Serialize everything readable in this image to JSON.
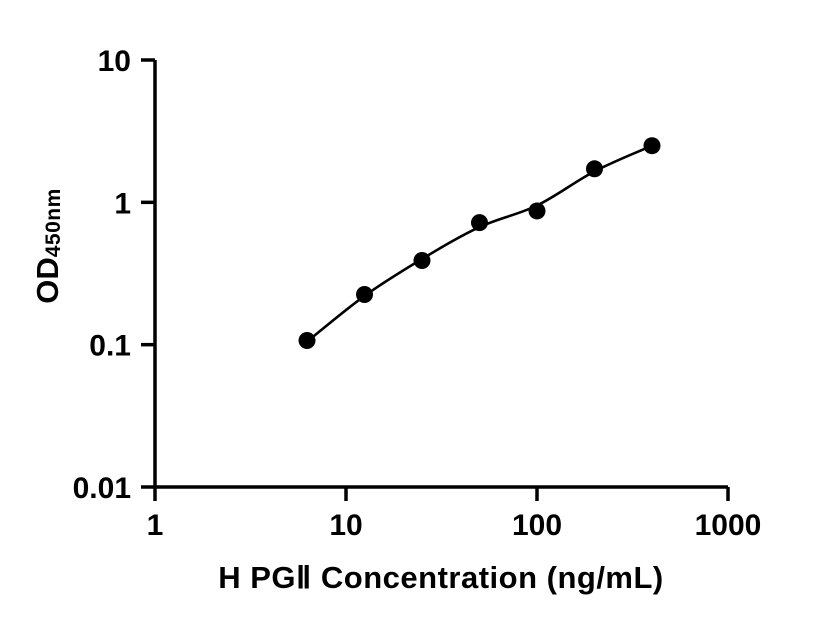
{
  "chart_data": {
    "type": "scatter",
    "title": "",
    "xlabel": "H PGⅡ Concentration (ng/mL)",
    "ylabel": {
      "main": "OD",
      "sub": "450nm"
    },
    "x_scale": "log",
    "y_scale": "log",
    "xlim": [
      1,
      1000
    ],
    "ylim": [
      0.01,
      10
    ],
    "grid": false,
    "legend": "none",
    "x_ticks": [
      {
        "value": 1,
        "label": "1"
      },
      {
        "value": 10,
        "label": "10"
      },
      {
        "value": 100,
        "label": "100"
      },
      {
        "value": 1000,
        "label": "1000"
      }
    ],
    "y_ticks": [
      {
        "value": 10,
        "label": "10"
      },
      {
        "value": 1,
        "label": "1"
      },
      {
        "value": 0.1,
        "label": "0.1"
      },
      {
        "value": 0.01,
        "label": "0.01"
      }
    ],
    "points": [
      {
        "x": 6.25,
        "y": 0.107
      },
      {
        "x": 12.5,
        "y": 0.225
      },
      {
        "x": 25,
        "y": 0.39
      },
      {
        "x": 50,
        "y": 0.72
      },
      {
        "x": 100,
        "y": 0.87
      },
      {
        "x": 200,
        "y": 1.72
      },
      {
        "x": 400,
        "y": 2.5
      }
    ],
    "fit_curve": [
      {
        "x": 6.25,
        "y": 0.105
      },
      {
        "x": 12.5,
        "y": 0.22
      },
      {
        "x": 25,
        "y": 0.4
      },
      {
        "x": 50,
        "y": 0.67
      },
      {
        "x": 100,
        "y": 0.95
      },
      {
        "x": 200,
        "y": 1.65
      },
      {
        "x": 400,
        "y": 2.5
      }
    ],
    "marker_color": "#000000",
    "line_color": "#000000",
    "axis_color": "#000000",
    "background_color": "#ffffff"
  }
}
